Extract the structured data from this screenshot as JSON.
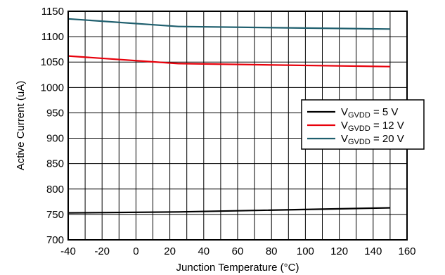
{
  "chart_data": {
    "type": "line",
    "xlabel": "Junction Temperature (°C)",
    "ylabel": "Active Current (uA)",
    "xlim": [
      -40,
      160
    ],
    "ylim": [
      700,
      1150
    ],
    "xticks": [
      -40,
      -20,
      0,
      20,
      40,
      60,
      80,
      100,
      120,
      140,
      160
    ],
    "yticks": [
      700,
      750,
      800,
      850,
      900,
      950,
      1000,
      1050,
      1100,
      1150
    ],
    "x_minor_step": 10,
    "grid": true,
    "legend_position": "right",
    "series": [
      {
        "name": "VGVDD = 5 V",
        "legend_parts": [
          "V",
          "GVDD",
          " = 5 V"
        ],
        "color": "#000000",
        "x": [
          -40,
          25,
          150
        ],
        "y": [
          753,
          755,
          763
        ]
      },
      {
        "name": "VGVDD = 12 V",
        "legend_parts": [
          "V",
          "GVDD",
          " = 12 V"
        ],
        "color": "#e8000b",
        "x": [
          -40,
          25,
          150
        ],
        "y": [
          1062,
          1047,
          1041
        ]
      },
      {
        "name": "VGVDD = 20 V",
        "legend_parts": [
          "V",
          "GVDD",
          " = 20 V"
        ],
        "color": "#1f5f6e",
        "x": [
          -40,
          25,
          150
        ],
        "y": [
          1135,
          1120,
          1115
        ]
      }
    ]
  }
}
